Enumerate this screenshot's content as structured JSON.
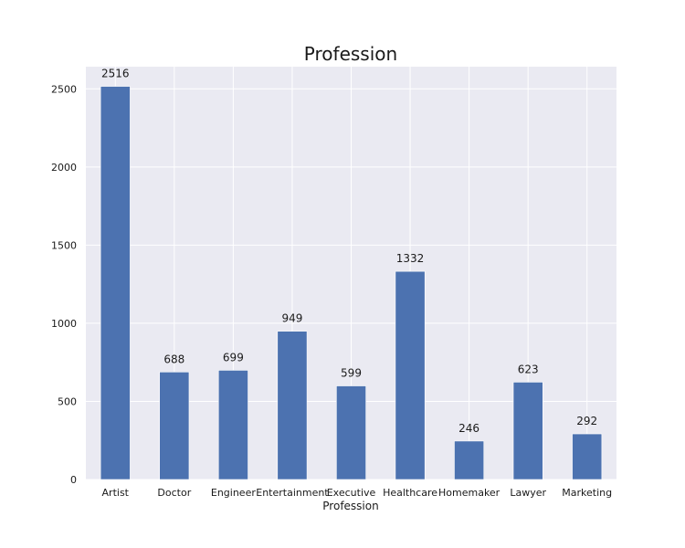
{
  "chart_data": {
    "type": "bar",
    "title": "Profession",
    "xlabel": "Profession",
    "ylabel": "",
    "categories": [
      "Artist",
      "Doctor",
      "Engineer",
      "Entertainment",
      "Executive",
      "Healthcare",
      "Homemaker",
      "Lawyer",
      "Marketing"
    ],
    "values": [
      2516,
      688,
      699,
      949,
      599,
      1332,
      246,
      623,
      292
    ],
    "data_labels": [
      "2516",
      "688",
      "699",
      "949",
      "599",
      "1332",
      "246",
      "623",
      "292"
    ],
    "yticks": [
      0,
      500,
      1000,
      1500,
      2000,
      2500
    ],
    "ytick_labels": [
      "0",
      "500",
      "1000",
      "1500",
      "2000",
      "2500"
    ],
    "ylim": [
      0,
      2642
    ],
    "grid": true,
    "bar_color": "#4c72b0",
    "background_color": "#eaeaf2",
    "grid_color": "#ffffff"
  }
}
